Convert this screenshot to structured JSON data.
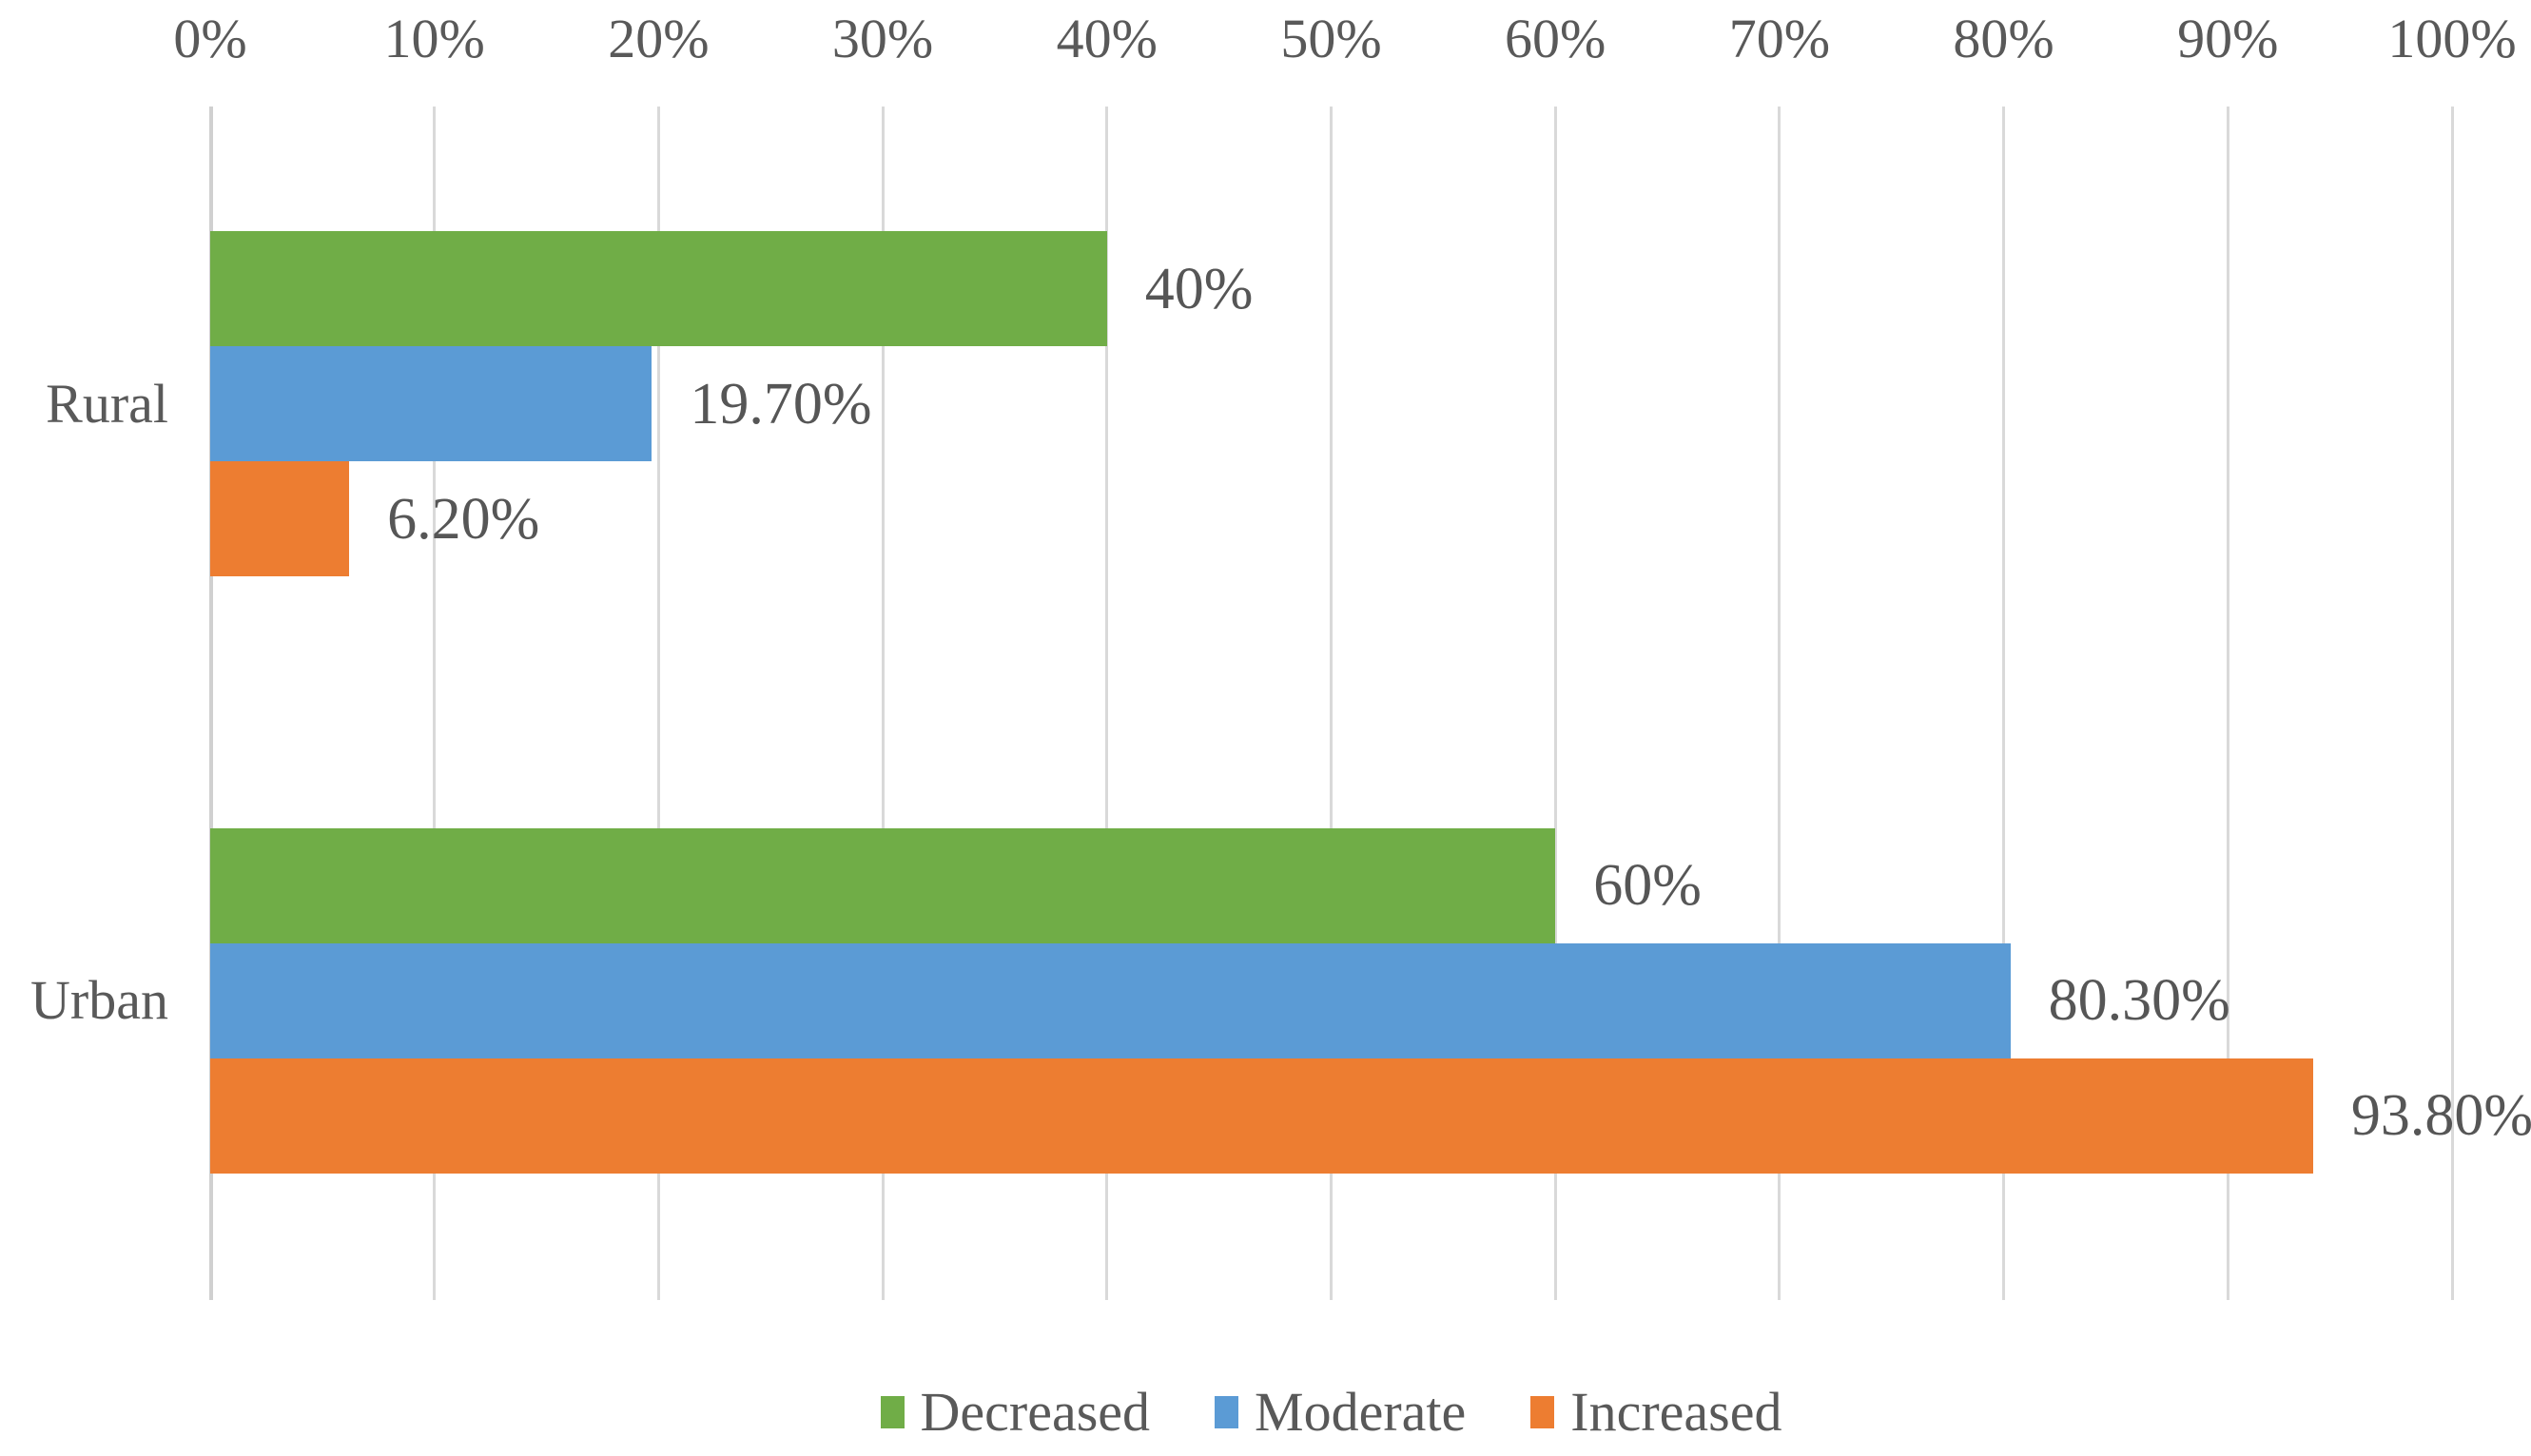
{
  "chart_data": {
    "type": "bar",
    "orientation": "horizontal",
    "title": "",
    "categories": [
      "Rural",
      "Urban"
    ],
    "series": [
      {
        "name": "Decreased",
        "color": "#70AD47",
        "values": [
          40,
          60
        ],
        "labels": [
          "40%",
          "60%"
        ]
      },
      {
        "name": "Moderate",
        "color": "#5B9BD5",
        "values": [
          19.7,
          80.3
        ],
        "labels": [
          "19.70%",
          "80.30%"
        ]
      },
      {
        "name": "Increased",
        "color": "#ED7D31",
        "values": [
          6.2,
          93.8
        ],
        "labels": [
          "6.20%",
          "93.80%"
        ]
      }
    ],
    "x_axis": {
      "position": "top",
      "min": 0,
      "max": 100,
      "tick_step": 10,
      "tick_labels": [
        "0%",
        "10%",
        "20%",
        "30%",
        "40%",
        "50%",
        "60%",
        "70%",
        "80%",
        "90%",
        "100%"
      ]
    },
    "grid": true,
    "legend": {
      "position": "bottom",
      "entries": [
        "Decreased",
        "Moderate",
        "Increased"
      ]
    },
    "style": {
      "text_color": "#595959",
      "gridline_color": "#D9D9D9",
      "background_color": "#FFFFFF"
    }
  }
}
